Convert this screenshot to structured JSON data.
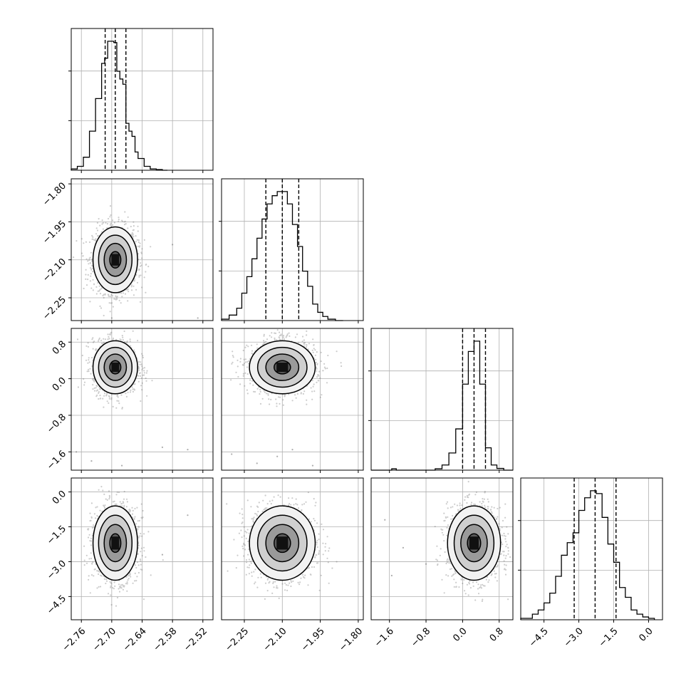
{
  "chart_data": {
    "type": "corner",
    "grid": true,
    "quantile_line_style": "dashed",
    "parameters": [
      {
        "index": 0,
        "range": [
          -2.78,
          -2.5
        ],
        "ticks": [
          -2.76,
          -2.7,
          -2.64,
          -2.58,
          -2.52
        ],
        "tick_labels": [
          "−2.76",
          "−2.70",
          "−2.64",
          "−2.58",
          "−2.52"
        ],
        "quantiles": [
          -2.713,
          -2.693,
          -2.672
        ],
        "hist_x_edges": [
          -2.78,
          -2.768,
          -2.756,
          -2.744,
          -2.732,
          -2.72,
          -2.714,
          -2.708,
          -2.702,
          -2.696,
          -2.69,
          -2.684,
          -2.678,
          -2.672,
          -2.666,
          -2.66,
          -2.654,
          -2.648,
          -2.636,
          -2.624,
          -2.612,
          -2.6,
          -2.59
        ],
        "hist_counts": [
          0.01,
          0.03,
          0.1,
          0.3,
          0.55,
          0.82,
          0.86,
          0.99,
          0.99,
          0.98,
          0.76,
          0.7,
          0.66,
          0.36,
          0.3,
          0.26,
          0.14,
          0.09,
          0.03,
          0.01,
          0.005,
          0.0
        ]
      },
      {
        "index": 1,
        "range": [
          -2.34,
          -1.78
        ],
        "ticks": [
          -2.25,
          -2.1,
          -1.95,
          -1.8
        ],
        "tick_labels": [
          "−2.25",
          "−2.10",
          "−1.95",
          "−1.80"
        ],
        "quantiles": [
          -2.165,
          -2.1,
          -2.035
        ],
        "hist_x_edges": [
          -2.34,
          -2.31,
          -2.28,
          -2.26,
          -2.24,
          -2.22,
          -2.2,
          -2.18,
          -2.16,
          -2.14,
          -2.12,
          -2.1,
          -2.08,
          -2.06,
          -2.04,
          -2.02,
          -2.0,
          -1.98,
          -1.96,
          -1.94,
          -1.92,
          -1.89,
          -1.86
        ],
        "hist_counts": [
          0.01,
          0.04,
          0.09,
          0.2,
          0.32,
          0.45,
          0.6,
          0.74,
          0.85,
          0.91,
          0.94,
          0.94,
          0.85,
          0.7,
          0.54,
          0.36,
          0.25,
          0.12,
          0.06,
          0.03,
          0.01,
          0.0
        ]
      },
      {
        "index": 2,
        "range": [
          -2.0,
          1.1
        ],
        "ticks": [
          -1.6,
          -0.8,
          0.0,
          0.8
        ],
        "tick_labels": [
          "−1.6",
          "−0.8",
          "0.0",
          "0.8"
        ],
        "quantiles": [
          0.0,
          0.25,
          0.5
        ],
        "hist_x_edges": [
          -2.0,
          -1.7,
          -1.55,
          -1.45,
          -0.6,
          -0.45,
          -0.3,
          -0.15,
          0.0,
          0.125,
          0.25,
          0.375,
          0.5,
          0.625,
          0.75,
          0.9,
          1.1
        ],
        "hist_counts": [
          0.0,
          0.0,
          0.008,
          0.0,
          0.008,
          0.03,
          0.1,
          0.24,
          0.5,
          0.69,
          0.75,
          0.5,
          0.13,
          0.03,
          0.01,
          0.0
        ]
      },
      {
        "index": 3,
        "range": [
          -5.5,
          0.6
        ],
        "ticks": [
          -4.5,
          -3.0,
          -1.5,
          0.0
        ],
        "tick_labels": [
          "−4.5",
          "−3.0",
          "−1.5",
          "0.0"
        ],
        "quantiles": [
          -3.2,
          -2.3,
          -1.4
        ],
        "hist_x_edges": [
          -5.5,
          -5.0,
          -4.75,
          -4.5,
          -4.25,
          -4.0,
          -3.75,
          -3.5,
          -3.25,
          -3.0,
          -2.75,
          -2.5,
          -2.25,
          -2.0,
          -1.75,
          -1.5,
          -1.25,
          -1.0,
          -0.75,
          -0.5,
          -0.25,
          0.0,
          0.25
        ],
        "hist_counts": [
          0.01,
          0.04,
          0.07,
          0.12,
          0.19,
          0.31,
          0.46,
          0.55,
          0.62,
          0.78,
          0.87,
          0.92,
          0.9,
          0.73,
          0.54,
          0.41,
          0.23,
          0.16,
          0.07,
          0.04,
          0.02,
          0.01
        ]
      }
    ],
    "scatter_panels": [
      {
        "row": 1,
        "col": 0,
        "center": [
          -2.693,
          -2.1
        ],
        "sigma": [
          0.022,
          0.065
        ],
        "levels": [
          0.5,
          1.0,
          1.5,
          2.0
        ],
        "outliers": [
          [
            -2.58,
            -2.04
          ],
          [
            -2.53,
            -2.33
          ],
          [
            -2.7,
            -2.33
          ]
        ]
      },
      {
        "row": 2,
        "col": 0,
        "center": [
          -2.693,
          0.25
        ],
        "sigma": [
          0.022,
          0.29
        ],
        "levels": [
          0.5,
          1.0,
          1.5,
          2.0
        ],
        "outliers": [
          [
            -2.77,
            -1.6
          ],
          [
            -2.74,
            -1.8
          ],
          [
            -2.6,
            -1.5
          ],
          [
            -2.55,
            -1.55
          ],
          [
            -2.68,
            -1.9
          ]
        ]
      },
      {
        "row": 3,
        "col": 0,
        "center": [
          -2.693,
          -2.2
        ],
        "sigma": [
          0.022,
          0.8
        ],
        "levels": [
          0.5,
          1.0,
          1.5,
          2.0
        ],
        "outliers": [
          [
            -2.55,
            -1.0
          ],
          [
            -2.6,
            -2.7
          ]
        ]
      },
      {
        "row": 2,
        "col": 1,
        "center": [
          -2.1,
          0.25
        ],
        "sigma": [
          0.065,
          0.29
        ],
        "levels": [
          0.5,
          1.0,
          1.5,
          2.0
        ],
        "outliers": [
          [
            -2.3,
            -1.65
          ],
          [
            -2.2,
            -1.85
          ],
          [
            -2.06,
            -1.55
          ],
          [
            -1.98,
            -1.9
          ],
          [
            -2.12,
            -1.7
          ]
        ]
      },
      {
        "row": 3,
        "col": 1,
        "center": [
          -2.1,
          -2.2
        ],
        "sigma": [
          0.065,
          0.8
        ],
        "levels": [
          0.5,
          1.0,
          1.5,
          2.0
        ],
        "outliers": []
      },
      {
        "row": 3,
        "col": 2,
        "center": [
          0.25,
          -2.2
        ],
        "sigma": [
          0.29,
          0.8
        ],
        "levels": [
          0.5,
          1.0,
          1.5,
          2.0
        ],
        "outliers": [
          [
            -1.7,
            -1.2
          ],
          [
            -1.3,
            -2.4
          ],
          [
            -0.8,
            -3.1
          ],
          [
            -1.55,
            -3.6
          ]
        ]
      }
    ]
  }
}
